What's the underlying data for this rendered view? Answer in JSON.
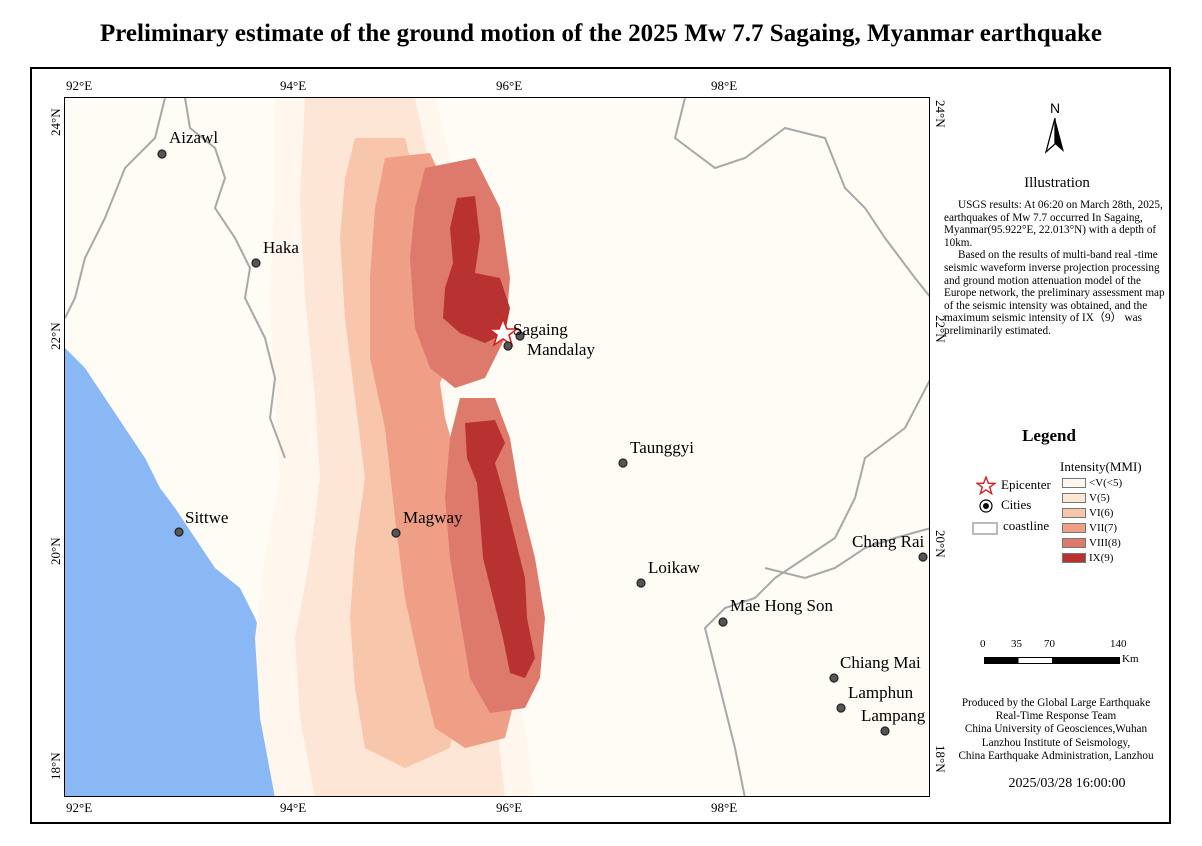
{
  "title": "Preliminary estimate of the ground motion of the 2025 Mw 7.7 Sagaing, Myanmar earthquake",
  "map": {
    "lon_ticks": [
      "92°E",
      "94°E",
      "96°E",
      "98°E"
    ],
    "lat_ticks": [
      "24°N",
      "22°N",
      "20°N",
      "18°N"
    ],
    "epicenter": {
      "lon": 95.922,
      "lat": 22.013
    },
    "cities": [
      {
        "name": "Aizawl"
      },
      {
        "name": "Haka"
      },
      {
        "name": "Sagaing"
      },
      {
        "name": "Mandalay"
      },
      {
        "name": "Taunggyi"
      },
      {
        "name": "Sittwe"
      },
      {
        "name": "Magway"
      },
      {
        "name": "Loikaw"
      },
      {
        "name": "Chang Rai"
      },
      {
        "name": "Mae Hong Son"
      },
      {
        "name": "Chiang Mai"
      },
      {
        "name": "Lamphun"
      },
      {
        "name": "Lampang"
      }
    ],
    "colors": {
      "sea": "#8ab8f5",
      "land": "#fffbf5",
      "mmi_lt5": "#fff6ee",
      "mmi5": "#fde6d6",
      "mmi6": "#f8c7ab",
      "mmi7": "#ee9f86",
      "mmi8": "#de7a6c",
      "mmi9": "#b83232",
      "border": "#a8a8a8",
      "epicenter": "#d42020"
    }
  },
  "north_arrow": {
    "label": "N"
  },
  "illustration": {
    "title": "Illustration",
    "paragraph1": "USGS results: At 06:20 on March 28th, 2025, earthquakes of Mw 7.7 occurred In Sagaing, Myanmar(95.922°E, 22.013°N) with a depth of 10km.",
    "paragraph2": "Based on the results of multi-band real -time seismic waveform inverse projection processing and ground motion attenuation model of the Europe network, the preliminary assessment map of the seismic intensity was obtained, and the maximum seismic intensity of IX（9） was preliminarily estimated."
  },
  "legend": {
    "title": "Legend",
    "epicenter_label": "Epicenter",
    "cities_label": "Cities",
    "coastline_label": "coastline",
    "intensity_title": "Intensity(MMI)",
    "intensity_classes": [
      {
        "label": "<V(<5)",
        "color": "#fff6ee"
      },
      {
        "label": "V(5)",
        "color": "#fde6d6"
      },
      {
        "label": "VI(6)",
        "color": "#f8c7ab"
      },
      {
        "label": "VII(7)",
        "color": "#ee9f86"
      },
      {
        "label": "VIII(8)",
        "color": "#de7a6c"
      },
      {
        "label": "IX(9)",
        "color": "#b83232"
      }
    ]
  },
  "scale_bar": {
    "ticks": [
      "0",
      "35",
      "70",
      "140"
    ],
    "unit": "Km"
  },
  "producer": {
    "line1": "Produced by the Global Large Earthquake",
    "line2": "Real-Time Response Team",
    "line3": "China University of Geosciences,Wuhan",
    "line4": "Lanzhou Institute of Seismology,",
    "line5": "China Earthquake Administration, Lanzhou"
  },
  "date": "2025/03/28 16:00:00"
}
